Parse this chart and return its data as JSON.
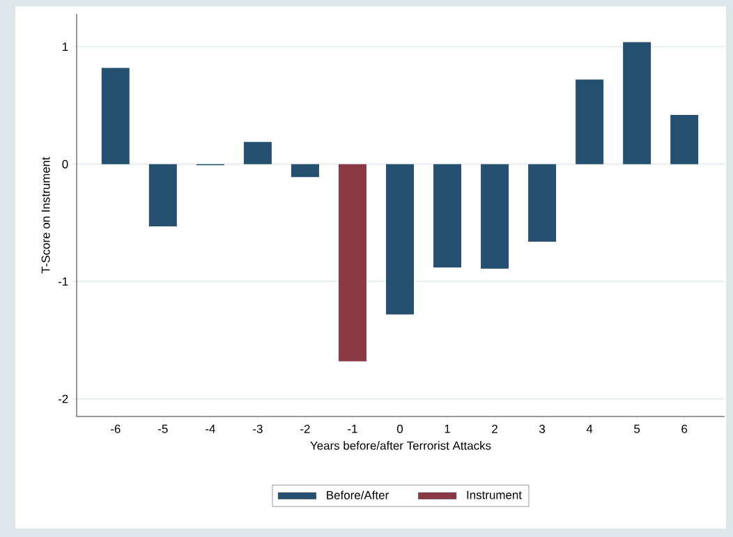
{
  "chart_data": {
    "type": "bar",
    "xlabel": "Years before/after Terrorist Attacks",
    "ylabel": "T-Score on Instrument",
    "categories": [
      "-6",
      "-5",
      "-4",
      "-3",
      "-2",
      "-1",
      "0",
      "1",
      "2",
      "3",
      "4",
      "5",
      "6"
    ],
    "series": [
      {
        "name": "Before/After",
        "color": "#26506f",
        "values": [
          0.82,
          -0.53,
          -0.01,
          0.19,
          -0.11,
          null,
          -1.28,
          -0.88,
          -0.89,
          -0.66,
          0.72,
          1.04,
          0.42
        ]
      },
      {
        "name": "Instrument",
        "color": "#8b3a45",
        "values": [
          null,
          null,
          null,
          null,
          null,
          -1.68,
          null,
          null,
          null,
          null,
          null,
          null,
          null
        ]
      }
    ],
    "ylim": [
      -2.15,
      1.28
    ],
    "yticks": [
      -2,
      -1,
      0,
      1
    ],
    "grid": "y",
    "legend": "bottom"
  }
}
